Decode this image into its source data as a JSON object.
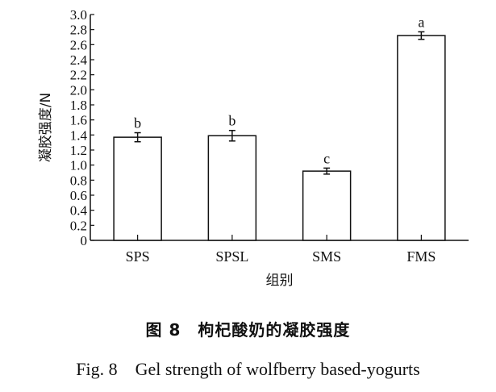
{
  "chart_data": {
    "type": "bar",
    "categories": [
      "SPS",
      "SPSL",
      "SMS",
      "FMS"
    ],
    "values": [
      1.37,
      1.39,
      0.92,
      2.72
    ],
    "errors": [
      0.06,
      0.07,
      0.04,
      0.05
    ],
    "significance_labels": [
      "b",
      "b",
      "c",
      "a"
    ],
    "xlabel": "组别",
    "ylabel": "凝胶强度/N",
    "ylim": [
      0,
      3.0
    ],
    "yticks": [
      "0",
      "0.2",
      "0.4",
      "0.6",
      "0.8",
      "1.0",
      "1.2",
      "1.4",
      "1.6",
      "1.8",
      "2.0",
      "2.2",
      "2.4",
      "2.6",
      "2.8",
      "3.0"
    ],
    "grid": false,
    "bar_fill": "#ffffff",
    "bar_stroke": "#111111"
  },
  "caption": {
    "cn": "图 8　枸杞酸奶的凝胶强度",
    "en": "Fig. 8　Gel strength of wolfberry based-yogurts"
  }
}
